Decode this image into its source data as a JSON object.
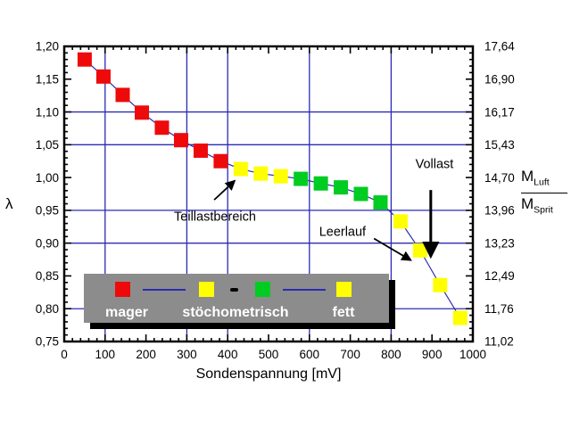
{
  "colors": {
    "grid": "#2b2bb4",
    "curve": "#2b2bb4",
    "frame": "#000000",
    "red": "#ee0a0a",
    "yellow": "#ffff00",
    "green": "#00cc22",
    "legend_bg": "#8c8c8c",
    "legend_text": "#ffffff"
  },
  "chart_data": {
    "type": "scatter",
    "title": "",
    "xlabel": "Sondenspannung [mV]",
    "left_axis_label": "λ",
    "right_axis_label": {
      "numerator": "M",
      "numerator_sub": "Luft",
      "denominator": "M",
      "denominator_sub": "Sprit"
    },
    "xlim": [
      0,
      1000
    ],
    "ylim": [
      0.75,
      1.2
    ],
    "x_tick_values": [
      0,
      100,
      200,
      300,
      400,
      500,
      600,
      700,
      800,
      900,
      1000
    ],
    "x_tick_labels": [
      "0",
      "100",
      "200",
      "300",
      "400",
      "500",
      "600",
      "700",
      "800",
      "900",
      "1000"
    ],
    "x_minor_step": 20,
    "left_tick_values": [
      1.2,
      1.15,
      1.1,
      1.05,
      1.0,
      0.95,
      0.9,
      0.85,
      0.8,
      0.75
    ],
    "left_tick_labels": [
      "1,20",
      "1,15",
      "1,10",
      "1,05",
      "1,00",
      "0,95",
      "0,90",
      "0,85",
      "0,80",
      "0,75"
    ],
    "right_tick_labels": [
      "17,64",
      "16,90",
      "16,17",
      "15,43",
      "14,70",
      "13,96",
      "13,23",
      "12,49",
      "11,76",
      "11,02"
    ],
    "y_minor_step": 0.01,
    "grid_x_mv": [
      100,
      300,
      400,
      600,
      800
    ],
    "grid_y_lambda": [
      1.1,
      1.05,
      0.95,
      0.9,
      0.8
    ],
    "points": [
      {
        "mv": 50,
        "lambda": 1.18,
        "color": "red"
      },
      {
        "mv": 96,
        "lambda": 1.154,
        "color": "red"
      },
      {
        "mv": 143,
        "lambda": 1.126,
        "color": "red"
      },
      {
        "mv": 190,
        "lambda": 1.099,
        "color": "red"
      },
      {
        "mv": 239,
        "lambda": 1.076,
        "color": "red"
      },
      {
        "mv": 286,
        "lambda": 1.057,
        "color": "red"
      },
      {
        "mv": 334,
        "lambda": 1.041,
        "color": "red"
      },
      {
        "mv": 383,
        "lambda": 1.025,
        "color": "red"
      },
      {
        "mv": 432,
        "lambda": 1.013,
        "color": "yellow"
      },
      {
        "mv": 481,
        "lambda": 1.006,
        "color": "yellow"
      },
      {
        "mv": 530,
        "lambda": 1.002,
        "color": "yellow"
      },
      {
        "mv": 579,
        "lambda": 0.998,
        "color": "green"
      },
      {
        "mv": 628,
        "lambda": 0.991,
        "color": "green"
      },
      {
        "mv": 677,
        "lambda": 0.985,
        "color": "green"
      },
      {
        "mv": 726,
        "lambda": 0.975,
        "color": "green"
      },
      {
        "mv": 774,
        "lambda": 0.962,
        "color": "green"
      },
      {
        "mv": 823,
        "lambda": 0.933,
        "color": "yellow"
      },
      {
        "mv": 871,
        "lambda": 0.889,
        "color": "yellow"
      },
      {
        "mv": 920,
        "lambda": 0.836,
        "color": "yellow"
      },
      {
        "mv": 969,
        "lambda": 0.786,
        "color": "yellow"
      }
    ],
    "annotations": [
      {
        "text": "Teillastbereich",
        "text_mv": 369,
        "text_lambda": 0.941,
        "arrow": {
          "from_mv": 367,
          "from_lambda": 0.966,
          "to_mv": 417,
          "to_lambda": 0.995
        },
        "stroke_width": 1.8
      },
      {
        "text": "Leerlauf",
        "text_mv": 681,
        "text_lambda": 0.918,
        "arrow": {
          "from_mv": 758,
          "from_lambda": 0.907,
          "to_mv": 848,
          "to_lambda": 0.874
        },
        "stroke_width": 1.8
      },
      {
        "text": "Vollast",
        "text_mv": 906,
        "text_lambda": 1.021,
        "arrow": {
          "from_mv": 897,
          "from_lambda": 0.981,
          "to_mv": 897,
          "to_lambda": 0.88
        },
        "stroke_width": 3
      }
    ]
  },
  "legend": {
    "labels": [
      "mager",
      "stöchometrisch",
      "fett"
    ]
  }
}
